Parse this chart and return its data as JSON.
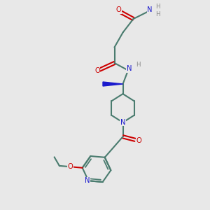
{
  "bg_color": "#e8e8e8",
  "bond_color": "#4a7c6f",
  "N_color": "#1a1acd",
  "O_color": "#cc0000",
  "H_color": "#888888",
  "lw": 1.5,
  "figsize": [
    3.0,
    3.0
  ],
  "dpi": 100,
  "xlim": [
    0,
    10
  ],
  "ylim": [
    0,
    10
  ]
}
